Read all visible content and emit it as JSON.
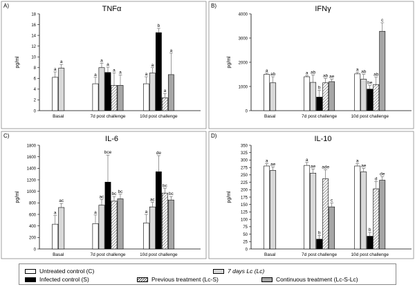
{
  "colors": {
    "untreated": "#ffffff",
    "infected": "#000000",
    "lc": "#d9d9d9",
    "lcs": "#555555",
    "lcslc": "#a6a6a6",
    "error": "#555555",
    "frame": "#888888"
  },
  "legend": {
    "items": [
      {
        "key": "untreated",
        "label": "Untreated control (C)"
      },
      {
        "key": "infected",
        "label": "Infected control (S)"
      },
      {
        "key": "lc",
        "label": "7 days Lc (Lc)"
      },
      {
        "key": "lcs",
        "label": "Previous treatment (Lc-S)"
      },
      {
        "key": "lcslc",
        "label": "Continuous treatment (Lc-S-Lc)"
      }
    ]
  },
  "chart_data": [
    {
      "panel": "A)",
      "type": "bar",
      "title": "TNFα",
      "ylabel": "pg/ml",
      "xlabel": "",
      "ylim": [
        0,
        18
      ],
      "yticks": [
        0,
        2,
        4,
        6,
        8,
        10,
        12,
        14,
        16,
        18
      ],
      "categories": [
        "Basal",
        "7d post challenge",
        "10d post challenge"
      ],
      "series": [
        {
          "key": "untreated",
          "name": "Untreated control (C)",
          "values": [
            6.2,
            5.0,
            5.0
          ],
          "errors": [
            1.0,
            1.2,
            1.3
          ],
          "labels": [
            "a",
            "a",
            "a"
          ]
        },
        {
          "key": "lc",
          "name": "7 days Lc (Lc)",
          "values": [
            7.9,
            8.0,
            7.0
          ],
          "errors": [
            0.7,
            0.8,
            1.0
          ],
          "labels": [
            "a",
            "a",
            "a"
          ]
        },
        {
          "key": "infected",
          "name": "Infected control (S)",
          "values": [
            null,
            7.1,
            14.5
          ],
          "errors": [
            null,
            1.0,
            0.8
          ],
          "labels": [
            null,
            "a",
            "b"
          ]
        },
        {
          "key": "lcs",
          "name": "Previous treatment (Lc-S)",
          "values": [
            null,
            4.7,
            2.4
          ],
          "errors": [
            null,
            2.3,
            0.8
          ],
          "labels": [
            null,
            "a",
            "a"
          ]
        },
        {
          "key": "lcslc",
          "name": "Continuous treatment (Lc-S-Lc)",
          "values": [
            null,
            4.7,
            6.7
          ],
          "errors": [
            null,
            1.9,
            4.0
          ],
          "labels": [
            null,
            "a",
            "a"
          ]
        }
      ]
    },
    {
      "panel": "B)",
      "type": "bar",
      "title": "IFNγ",
      "ylabel": "pg/ml",
      "xlabel": "",
      "ylim": [
        0,
        4000
      ],
      "yticks": [
        0,
        1000,
        2000,
        3000,
        4000
      ],
      "categories": [
        "Basal",
        "7d post challenge",
        "10d post challenge"
      ],
      "series": [
        {
          "key": "untreated",
          "name": "Untreated control (C)",
          "values": [
            1500,
            1400,
            1520
          ],
          "errors": [
            50,
            40,
            60
          ],
          "labels": [
            "a",
            "a",
            "a"
          ]
        },
        {
          "key": "lc",
          "name": "7 days Lc (Lc)",
          "values": [
            1150,
            1170,
            1300
          ],
          "errors": [
            250,
            300,
            200
          ],
          "labels": [
            "ab",
            "ab",
            "ab"
          ]
        },
        {
          "key": "infected",
          "name": "Infected control (S)",
          "values": [
            null,
            560,
            890
          ],
          "errors": [
            null,
            280,
            150
          ],
          "labels": [
            null,
            "b",
            "be"
          ]
        },
        {
          "key": "lcs",
          "name": "Previous treatment (Lc-S)",
          "values": [
            null,
            1150,
            1080
          ],
          "errors": [
            null,
            180,
            300
          ],
          "labels": [
            null,
            "ab",
            "ab"
          ]
        },
        {
          "key": "lcslc",
          "name": "Continuous treatment (Lc-S-Lc)",
          "values": [
            null,
            1200,
            3280
          ],
          "errors": [
            null,
            100,
            350
          ],
          "labels": [
            null,
            "ae",
            "c"
          ]
        }
      ]
    },
    {
      "panel": "C)",
      "type": "bar",
      "title": "IL-6",
      "ylabel": "pg/ml",
      "xlabel": "",
      "ylim": [
        0,
        1800
      ],
      "yticks": [
        0,
        200,
        400,
        600,
        800,
        1000,
        1200,
        1400,
        1600,
        1800
      ],
      "categories": [
        "Basal",
        "7d post challenge",
        "10d post challenge"
      ],
      "series": [
        {
          "key": "untreated",
          "name": "Untreated control (C)",
          "values": [
            430,
            440,
            450
          ],
          "errors": [
            150,
            150,
            150
          ],
          "labels": [
            "a",
            "a",
            "a"
          ]
        },
        {
          "key": "lc",
          "name": "7 days Lc (Lc)",
          "values": [
            720,
            760,
            730
          ],
          "errors": [
            70,
            100,
            80
          ],
          "labels": [
            "ac",
            "ac",
            "ac"
          ]
        },
        {
          "key": "infected",
          "name": "Infected control (S)",
          "values": [
            null,
            1160,
            1340
          ],
          "errors": [
            null,
            470,
            280
          ],
          "labels": [
            null,
            "bce",
            "de"
          ]
        },
        {
          "key": "lcs",
          "name": "Previous treatment (Lc-S)",
          "values": [
            null,
            830,
            970
          ],
          "errors": [
            null,
            80,
            80
          ],
          "labels": [
            null,
            "bc",
            "bc"
          ]
        },
        {
          "key": "lcslc",
          "name": "Continuous treatment (Lc-S-Lc)",
          "values": [
            null,
            870,
            850
          ],
          "errors": [
            null,
            80,
            60
          ],
          "labels": [
            null,
            "bc",
            "bc"
          ]
        }
      ]
    },
    {
      "panel": "D)",
      "type": "bar",
      "title": "IL-10",
      "ylabel": "pg/ml",
      "xlabel": "",
      "ylim": [
        0,
        350
      ],
      "yticks": [
        0,
        25,
        50,
        75,
        100,
        125,
        150,
        175,
        200,
        225,
        250,
        275,
        300,
        325,
        350
      ],
      "categories": [
        "Basal",
        "7d post challenge",
        "10d post challenge"
      ],
      "series": [
        {
          "key": "untreated",
          "name": "Untreated control (C)",
          "values": [
            280,
            282,
            280
          ],
          "errors": [
            8,
            10,
            8
          ],
          "labels": [
            "a",
            "a",
            "a"
          ]
        },
        {
          "key": "lc",
          "name": "7 days Lc (Lc)",
          "values": [
            265,
            256,
            260
          ],
          "errors": [
            12,
            14,
            12
          ],
          "labels": [
            "ae",
            "ae",
            "ae"
          ]
        },
        {
          "key": "infected",
          "name": "Infected control (S)",
          "values": [
            null,
            33,
            43
          ],
          "errors": [
            null,
            13,
            13
          ],
          "labels": [
            null,
            "b",
            "b"
          ]
        },
        {
          "key": "lcs",
          "name": "Previous treatment (Lc-S)",
          "values": [
            null,
            237,
            203
          ],
          "errors": [
            null,
            30,
            25
          ],
          "labels": [
            null,
            "ade",
            "d"
          ]
        },
        {
          "key": "lcslc",
          "name": "Continuous treatment (Lc-S-Lc)",
          "values": [
            null,
            142,
            232
          ],
          "errors": [
            null,
            13,
            12
          ],
          "labels": [
            null,
            "c",
            "de"
          ]
        }
      ]
    }
  ]
}
